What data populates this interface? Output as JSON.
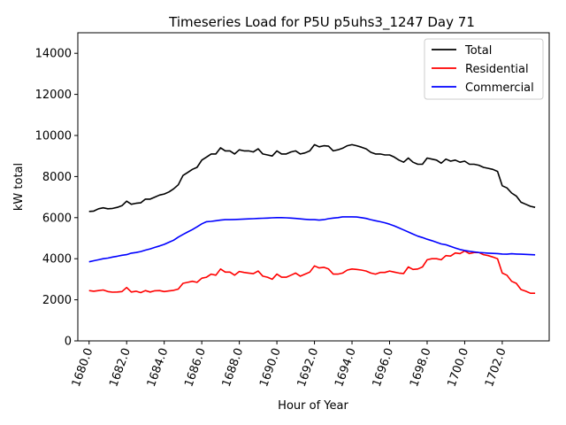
{
  "chart_data": {
    "type": "line",
    "title": "Timeseries Load for P5U p5uhs3_1247  Day 71",
    "xlabel": "Hour of Year",
    "ylabel": "kW total",
    "xlim": [
      1679.4,
      1704.5
    ],
    "ylim": [
      0,
      15000
    ],
    "xticks": [
      1680,
      1682,
      1684,
      1686,
      1688,
      1690,
      1692,
      1694,
      1696,
      1698,
      1700,
      1702
    ],
    "xtick_labels": [
      "1680.0",
      "1682.0",
      "1684.0",
      "1686.0",
      "1688.0",
      "1690.0",
      "1692.0",
      "1694.0",
      "1696.0",
      "1698.0",
      "1700.0",
      "1702.0"
    ],
    "yticks": [
      0,
      2000,
      4000,
      6000,
      8000,
      10000,
      12000,
      14000
    ],
    "ytick_labels": [
      "0",
      "2000",
      "4000",
      "6000",
      "8000",
      "10000",
      "12000",
      "14000"
    ],
    "legend_position": "top-right",
    "series": [
      {
        "name": "Total",
        "color": "#000000",
        "points": [
          [
            1680.0,
            6300
          ],
          [
            1680.25,
            6320
          ],
          [
            1680.5,
            6430
          ],
          [
            1680.75,
            6480
          ],
          [
            1681.0,
            6430
          ],
          [
            1681.25,
            6450
          ],
          [
            1681.5,
            6500
          ],
          [
            1681.75,
            6580
          ],
          [
            1682.0,
            6800
          ],
          [
            1682.25,
            6650
          ],
          [
            1682.5,
            6700
          ],
          [
            1682.75,
            6720
          ],
          [
            1683.0,
            6900
          ],
          [
            1683.25,
            6900
          ],
          [
            1683.5,
            7000
          ],
          [
            1683.75,
            7100
          ],
          [
            1684.0,
            7150
          ],
          [
            1684.25,
            7250
          ],
          [
            1684.5,
            7400
          ],
          [
            1684.75,
            7600
          ],
          [
            1685.0,
            8050
          ],
          [
            1685.25,
            8200
          ],
          [
            1685.5,
            8350
          ],
          [
            1685.75,
            8450
          ],
          [
            1686.0,
            8800
          ],
          [
            1686.25,
            8950
          ],
          [
            1686.5,
            9100
          ],
          [
            1686.75,
            9100
          ],
          [
            1687.0,
            9400
          ],
          [
            1687.25,
            9250
          ],
          [
            1687.5,
            9250
          ],
          [
            1687.75,
            9100
          ],
          [
            1688.0,
            9300
          ],
          [
            1688.25,
            9250
          ],
          [
            1688.5,
            9250
          ],
          [
            1688.75,
            9200
          ],
          [
            1689.0,
            9350
          ],
          [
            1689.25,
            9100
          ],
          [
            1689.5,
            9050
          ],
          [
            1689.75,
            9000
          ],
          [
            1690.0,
            9250
          ],
          [
            1690.25,
            9100
          ],
          [
            1690.5,
            9100
          ],
          [
            1690.75,
            9200
          ],
          [
            1691.0,
            9250
          ],
          [
            1691.25,
            9100
          ],
          [
            1691.5,
            9150
          ],
          [
            1691.75,
            9250
          ],
          [
            1692.0,
            9550
          ],
          [
            1692.25,
            9450
          ],
          [
            1692.5,
            9500
          ],
          [
            1692.75,
            9480
          ],
          [
            1693.0,
            9250
          ],
          [
            1693.25,
            9300
          ],
          [
            1693.5,
            9380
          ],
          [
            1693.75,
            9500
          ],
          [
            1694.0,
            9550
          ],
          [
            1694.25,
            9500
          ],
          [
            1694.5,
            9430
          ],
          [
            1694.75,
            9350
          ],
          [
            1695.0,
            9180
          ],
          [
            1695.25,
            9100
          ],
          [
            1695.5,
            9100
          ],
          [
            1695.75,
            9050
          ],
          [
            1696.0,
            9050
          ],
          [
            1696.25,
            8950
          ],
          [
            1696.5,
            8800
          ],
          [
            1696.75,
            8700
          ],
          [
            1697.0,
            8900
          ],
          [
            1697.25,
            8700
          ],
          [
            1697.5,
            8600
          ],
          [
            1697.75,
            8600
          ],
          [
            1698.0,
            8900
          ],
          [
            1698.25,
            8850
          ],
          [
            1698.5,
            8800
          ],
          [
            1698.75,
            8650
          ],
          [
            1699.0,
            8850
          ],
          [
            1699.25,
            8750
          ],
          [
            1699.5,
            8800
          ],
          [
            1699.75,
            8700
          ],
          [
            1700.0,
            8750
          ],
          [
            1700.25,
            8600
          ],
          [
            1700.5,
            8600
          ],
          [
            1700.75,
            8550
          ],
          [
            1701.0,
            8450
          ],
          [
            1701.25,
            8400
          ],
          [
            1701.5,
            8350
          ],
          [
            1701.75,
            8250
          ],
          [
            1702.0,
            7550
          ],
          [
            1702.25,
            7450
          ],
          [
            1702.5,
            7200
          ],
          [
            1702.75,
            7050
          ],
          [
            1703.0,
            6750
          ],
          [
            1703.25,
            6650
          ],
          [
            1703.5,
            6550
          ],
          [
            1703.75,
            6500
          ]
        ]
      },
      {
        "name": "Residential",
        "color": "#ff0000",
        "points": [
          [
            1680.0,
            2450
          ],
          [
            1680.25,
            2420
          ],
          [
            1680.5,
            2450
          ],
          [
            1680.75,
            2480
          ],
          [
            1681.0,
            2400
          ],
          [
            1681.25,
            2370
          ],
          [
            1681.5,
            2380
          ],
          [
            1681.75,
            2400
          ],
          [
            1682.0,
            2600
          ],
          [
            1682.25,
            2380
          ],
          [
            1682.5,
            2420
          ],
          [
            1682.75,
            2350
          ],
          [
            1683.0,
            2450
          ],
          [
            1683.25,
            2380
          ],
          [
            1683.5,
            2440
          ],
          [
            1683.75,
            2450
          ],
          [
            1684.0,
            2400
          ],
          [
            1684.25,
            2430
          ],
          [
            1684.5,
            2460
          ],
          [
            1684.75,
            2520
          ],
          [
            1685.0,
            2800
          ],
          [
            1685.25,
            2850
          ],
          [
            1685.5,
            2900
          ],
          [
            1685.75,
            2850
          ],
          [
            1686.0,
            3050
          ],
          [
            1686.25,
            3100
          ],
          [
            1686.5,
            3250
          ],
          [
            1686.75,
            3200
          ],
          [
            1687.0,
            3500
          ],
          [
            1687.25,
            3350
          ],
          [
            1687.5,
            3350
          ],
          [
            1687.75,
            3200
          ],
          [
            1688.0,
            3380
          ],
          [
            1688.25,
            3330
          ],
          [
            1688.5,
            3300
          ],
          [
            1688.75,
            3270
          ],
          [
            1689.0,
            3400
          ],
          [
            1689.25,
            3150
          ],
          [
            1689.5,
            3100
          ],
          [
            1689.75,
            3000
          ],
          [
            1690.0,
            3250
          ],
          [
            1690.25,
            3100
          ],
          [
            1690.5,
            3100
          ],
          [
            1690.75,
            3200
          ],
          [
            1691.0,
            3300
          ],
          [
            1691.25,
            3150
          ],
          [
            1691.5,
            3250
          ],
          [
            1691.75,
            3350
          ],
          [
            1692.0,
            3650
          ],
          [
            1692.25,
            3550
          ],
          [
            1692.5,
            3580
          ],
          [
            1692.75,
            3500
          ],
          [
            1693.0,
            3250
          ],
          [
            1693.25,
            3250
          ],
          [
            1693.5,
            3300
          ],
          [
            1693.75,
            3450
          ],
          [
            1694.0,
            3500
          ],
          [
            1694.25,
            3480
          ],
          [
            1694.5,
            3450
          ],
          [
            1694.75,
            3400
          ],
          [
            1695.0,
            3300
          ],
          [
            1695.25,
            3250
          ],
          [
            1695.5,
            3330
          ],
          [
            1695.75,
            3330
          ],
          [
            1696.0,
            3400
          ],
          [
            1696.25,
            3350
          ],
          [
            1696.5,
            3300
          ],
          [
            1696.75,
            3280
          ],
          [
            1697.0,
            3600
          ],
          [
            1697.25,
            3480
          ],
          [
            1697.5,
            3500
          ],
          [
            1697.75,
            3600
          ],
          [
            1698.0,
            3950
          ],
          [
            1698.25,
            4000
          ],
          [
            1698.5,
            4000
          ],
          [
            1698.75,
            3950
          ],
          [
            1699.0,
            4150
          ],
          [
            1699.25,
            4130
          ],
          [
            1699.5,
            4280
          ],
          [
            1699.75,
            4250
          ],
          [
            1700.0,
            4380
          ],
          [
            1700.25,
            4250
          ],
          [
            1700.5,
            4300
          ],
          [
            1700.75,
            4300
          ],
          [
            1701.0,
            4200
          ],
          [
            1701.25,
            4150
          ],
          [
            1701.5,
            4080
          ],
          [
            1701.75,
            4000
          ],
          [
            1702.0,
            3300
          ],
          [
            1702.25,
            3200
          ],
          [
            1702.5,
            2900
          ],
          [
            1702.75,
            2800
          ],
          [
            1703.0,
            2500
          ],
          [
            1703.25,
            2420
          ],
          [
            1703.5,
            2320
          ],
          [
            1703.75,
            2320
          ]
        ]
      },
      {
        "name": "Commercial",
        "color": "#0000ff",
        "points": [
          [
            1680.0,
            3850
          ],
          [
            1680.25,
            3900
          ],
          [
            1680.5,
            3950
          ],
          [
            1680.75,
            4000
          ],
          [
            1681.0,
            4030
          ],
          [
            1681.25,
            4080
          ],
          [
            1681.5,
            4120
          ],
          [
            1681.75,
            4170
          ],
          [
            1682.0,
            4200
          ],
          [
            1682.25,
            4270
          ],
          [
            1682.5,
            4300
          ],
          [
            1682.75,
            4350
          ],
          [
            1683.0,
            4420
          ],
          [
            1683.25,
            4480
          ],
          [
            1683.5,
            4550
          ],
          [
            1683.75,
            4620
          ],
          [
            1684.0,
            4700
          ],
          [
            1684.25,
            4800
          ],
          [
            1684.5,
            4900
          ],
          [
            1684.75,
            5050
          ],
          [
            1685.0,
            5180
          ],
          [
            1685.25,
            5300
          ],
          [
            1685.5,
            5420
          ],
          [
            1685.75,
            5550
          ],
          [
            1686.0,
            5700
          ],
          [
            1686.25,
            5800
          ],
          [
            1686.5,
            5820
          ],
          [
            1686.75,
            5850
          ],
          [
            1687.0,
            5880
          ],
          [
            1687.25,
            5900
          ],
          [
            1687.5,
            5900
          ],
          [
            1687.75,
            5910
          ],
          [
            1688.0,
            5920
          ],
          [
            1688.25,
            5930
          ],
          [
            1688.5,
            5940
          ],
          [
            1688.75,
            5950
          ],
          [
            1689.0,
            5960
          ],
          [
            1689.25,
            5970
          ],
          [
            1689.5,
            5980
          ],
          [
            1689.75,
            5990
          ],
          [
            1690.0,
            6000
          ],
          [
            1690.25,
            6000
          ],
          [
            1690.5,
            5990
          ],
          [
            1690.75,
            5980
          ],
          [
            1691.0,
            5960
          ],
          [
            1691.25,
            5940
          ],
          [
            1691.5,
            5920
          ],
          [
            1691.75,
            5900
          ],
          [
            1692.0,
            5900
          ],
          [
            1692.25,
            5880
          ],
          [
            1692.5,
            5900
          ],
          [
            1692.75,
            5950
          ],
          [
            1693.0,
            5980
          ],
          [
            1693.25,
            6000
          ],
          [
            1693.5,
            6040
          ],
          [
            1693.75,
            6040
          ],
          [
            1694.0,
            6040
          ],
          [
            1694.25,
            6030
          ],
          [
            1694.5,
            6000
          ],
          [
            1694.75,
            5960
          ],
          [
            1695.0,
            5900
          ],
          [
            1695.25,
            5850
          ],
          [
            1695.5,
            5800
          ],
          [
            1695.75,
            5750
          ],
          [
            1696.0,
            5680
          ],
          [
            1696.25,
            5600
          ],
          [
            1696.5,
            5500
          ],
          [
            1696.75,
            5400
          ],
          [
            1697.0,
            5300
          ],
          [
            1697.25,
            5200
          ],
          [
            1697.5,
            5100
          ],
          [
            1697.75,
            5030
          ],
          [
            1698.0,
            4950
          ],
          [
            1698.25,
            4880
          ],
          [
            1698.5,
            4800
          ],
          [
            1698.75,
            4720
          ],
          [
            1699.0,
            4680
          ],
          [
            1699.25,
            4600
          ],
          [
            1699.5,
            4520
          ],
          [
            1699.75,
            4450
          ],
          [
            1700.0,
            4400
          ],
          [
            1700.25,
            4360
          ],
          [
            1700.5,
            4330
          ],
          [
            1700.75,
            4300
          ],
          [
            1701.0,
            4290
          ],
          [
            1701.25,
            4270
          ],
          [
            1701.5,
            4260
          ],
          [
            1701.75,
            4250
          ],
          [
            1702.0,
            4230
          ],
          [
            1702.25,
            4220
          ],
          [
            1702.5,
            4240
          ],
          [
            1702.75,
            4230
          ],
          [
            1703.0,
            4220
          ],
          [
            1703.25,
            4210
          ],
          [
            1703.5,
            4200
          ],
          [
            1703.75,
            4190
          ]
        ]
      }
    ]
  }
}
